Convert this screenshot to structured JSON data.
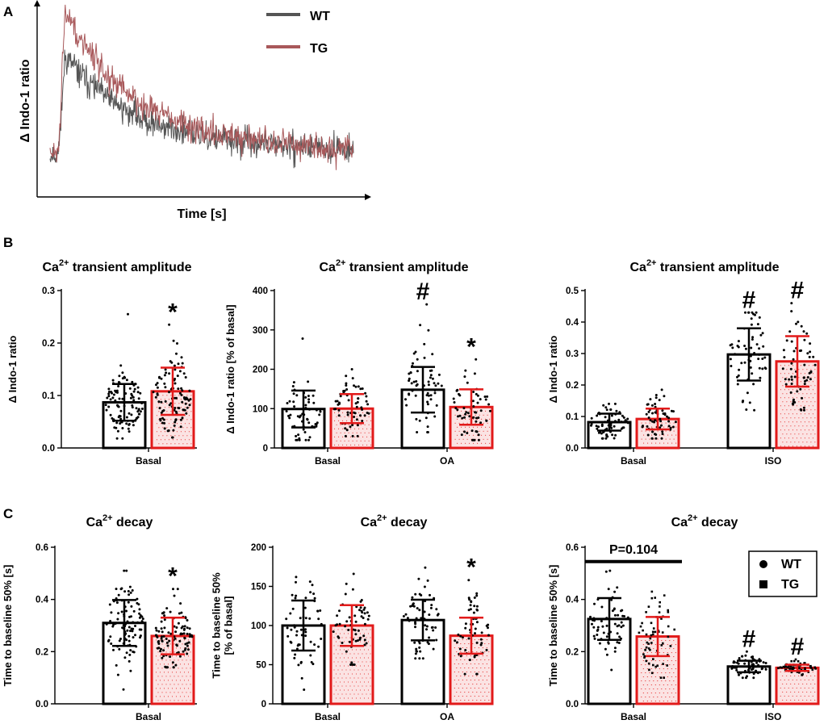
{
  "colors": {
    "wt": "#000000",
    "tg": "#e21a1a",
    "tg_fill": "#fbe3e3",
    "trace_wt": "#555555",
    "trace_tg": "#a8585a"
  },
  "panel_labels": [
    "A",
    "B",
    "C"
  ],
  "chart_data": [
    {
      "id": "A",
      "type": "line",
      "xlabel": "Time [s]",
      "ylabel": "Δ Indo-1 ratio",
      "legend": {
        "position": "top",
        "entries": [
          "WT",
          "TG"
        ]
      },
      "series": [
        {
          "name": "WT",
          "baseline": 0.1,
          "peak": 0.72,
          "final": 0.12,
          "rise_fraction": 0.05,
          "decay_rate": 4.2
        },
        {
          "name": "TG",
          "baseline": 0.1,
          "peak": 1.0,
          "final": 0.12,
          "rise_fraction": 0.05,
          "decay_rate": 4.2
        }
      ]
    },
    {
      "id": "B1",
      "type": "bar",
      "title_main": "Ca",
      "title_sup": "2+",
      "title_rest": " transient amplitude",
      "ylabel_lines": [
        "Δ Indo-1 ratio"
      ],
      "ylim": [
        0,
        0.3
      ],
      "yticks": [
        "0.0",
        "0.1",
        "0.2",
        "0.3"
      ],
      "groups": [
        {
          "label": "Basal",
          "bars": [
            {
              "series": "WT",
              "mean": 0.087,
              "sd": 0.035,
              "n": 100,
              "min": 0.018,
              "max": 0.255,
              "sig": ""
            },
            {
              "series": "TG",
              "mean": 0.108,
              "sd": 0.045,
              "n": 100,
              "min": 0.02,
              "max": 0.235,
              "sig": "*"
            }
          ]
        }
      ]
    },
    {
      "id": "B2",
      "type": "bar",
      "title_main": "Ca",
      "title_sup": "2+",
      "title_rest": " transient amplitude",
      "ylabel_lines": [
        "Δ Indo-1 ratio [% of basal]"
      ],
      "ylim": [
        0,
        400
      ],
      "yticks": [
        "0",
        "100",
        "200",
        "300",
        "400"
      ],
      "groups": [
        {
          "label": "Basal",
          "bars": [
            {
              "series": "WT",
              "mean": 99,
              "sd": 47,
              "n": 60,
              "min": 20,
              "max": 278,
              "sig": ""
            },
            {
              "series": "TG",
              "mean": 100,
              "sd": 37,
              "n": 60,
              "min": 30,
              "max": 200,
              "sig": ""
            }
          ]
        },
        {
          "label": "OA",
          "bars": [
            {
              "series": "WT",
              "mean": 148,
              "sd": 58,
              "n": 60,
              "min": 40,
              "max": 365,
              "sig": "#"
            },
            {
              "series": "TG",
              "mean": 104,
              "sd": 45,
              "n": 60,
              "min": 20,
              "max": 225,
              "sig": "*"
            }
          ]
        }
      ]
    },
    {
      "id": "B3",
      "type": "bar",
      "title_main": "Ca",
      "title_sup": "2+",
      "title_rest": " transient amplitude",
      "ylabel_lines": [
        "Δ Indo-1 ratio"
      ],
      "ylim": [
        0,
        0.5
      ],
      "yticks": [
        "0.0",
        "0.1",
        "0.2",
        "0.3",
        "0.4",
        "0.5"
      ],
      "groups": [
        {
          "label": "Basal",
          "bars": [
            {
              "series": "WT",
              "mean": 0.082,
              "sd": 0.027,
              "n": 60,
              "min": 0.03,
              "max": 0.14,
              "sig": ""
            },
            {
              "series": "TG",
              "mean": 0.092,
              "sd": 0.033,
              "n": 60,
              "min": 0.03,
              "max": 0.185,
              "sig": ""
            }
          ]
        },
        {
          "label": "ISO",
          "bars": [
            {
              "series": "WT",
              "mean": 0.297,
              "sd": 0.083,
              "n": 60,
              "min": 0.12,
              "max": 0.43,
              "sig": "#"
            },
            {
              "series": "TG",
              "mean": 0.275,
              "sd": 0.08,
              "n": 60,
              "min": 0.12,
              "max": 0.46,
              "sig": "#"
            }
          ]
        }
      ]
    },
    {
      "id": "C1",
      "type": "bar",
      "title_main": "Ca",
      "title_sup": "2+",
      "title_rest": " decay",
      "ylabel_lines": [
        "Time to baseline 50% [s]"
      ],
      "ylim": [
        0,
        0.6
      ],
      "yticks": [
        "0.0",
        "0.2",
        "0.4",
        "0.6"
      ],
      "groups": [
        {
          "label": "Basal",
          "bars": [
            {
              "series": "WT",
              "mean": 0.31,
              "sd": 0.088,
              "n": 100,
              "min": 0.055,
              "max": 0.51,
              "sig": ""
            },
            {
              "series": "TG",
              "mean": 0.26,
              "sd": 0.07,
              "n": 100,
              "min": 0.14,
              "max": 0.44,
              "sig": "*"
            }
          ]
        }
      ]
    },
    {
      "id": "C2",
      "type": "bar",
      "title_main": "Ca",
      "title_sup": "2+",
      "title_rest": " decay",
      "ylabel_lines": [
        "Time to baseline 50%",
        "[% of basal]"
      ],
      "ylim": [
        0,
        200
      ],
      "yticks": [
        "0",
        "50",
        "100",
        "150",
        "200"
      ],
      "groups": [
        {
          "label": "Basal",
          "bars": [
            {
              "series": "WT",
              "mean": 100,
              "sd": 32,
              "n": 60,
              "min": 18,
              "max": 162,
              "sig": ""
            },
            {
              "series": "TG",
              "mean": 100,
              "sd": 26,
              "n": 60,
              "min": 50,
              "max": 166,
              "sig": ""
            }
          ]
        },
        {
          "label": "OA",
          "bars": [
            {
              "series": "WT",
              "mean": 107,
              "sd": 26,
              "n": 60,
              "min": 58,
              "max": 174,
              "sig": ""
            },
            {
              "series": "TG",
              "mean": 87,
              "sd": 23,
              "n": 60,
              "min": 38,
              "max": 158,
              "sig": "*"
            }
          ]
        }
      ]
    },
    {
      "id": "C3",
      "type": "bar",
      "title_main": "Ca",
      "title_sup": "2+",
      "title_rest": " decay",
      "ylabel_lines": [
        "Time to baseline 50% [s]"
      ],
      "ylim": [
        0,
        0.6
      ],
      "yticks": [
        "0.0",
        "0.2",
        "0.4",
        "0.6"
      ],
      "annotation": {
        "text": "P=0.104",
        "group": "Basal",
        "y": 0.545
      },
      "legend": {
        "position": "top-right",
        "entries": [
          {
            "symbol": "●",
            "label": "WT",
            "series": "WT"
          },
          {
            "symbol": "■",
            "label": "TG",
            "series": "TG"
          }
        ]
      },
      "groups": [
        {
          "label": "Basal",
          "bars": [
            {
              "series": "WT",
              "mean": 0.325,
              "sd": 0.08,
              "n": 60,
              "min": 0.13,
              "max": 0.51,
              "sig": ""
            },
            {
              "series": "TG",
              "mean": 0.258,
              "sd": 0.075,
              "n": 60,
              "min": 0.1,
              "max": 0.43,
              "sig": ""
            }
          ]
        },
        {
          "label": "ISO",
          "bars": [
            {
              "series": "WT",
              "mean": 0.143,
              "sd": 0.022,
              "n": 60,
              "min": 0.1,
              "max": 0.2,
              "sig": "#"
            },
            {
              "series": "TG",
              "mean": 0.138,
              "sd": 0.012,
              "n": 60,
              "min": 0.11,
              "max": 0.17,
              "sig": "#"
            }
          ]
        }
      ]
    }
  ]
}
